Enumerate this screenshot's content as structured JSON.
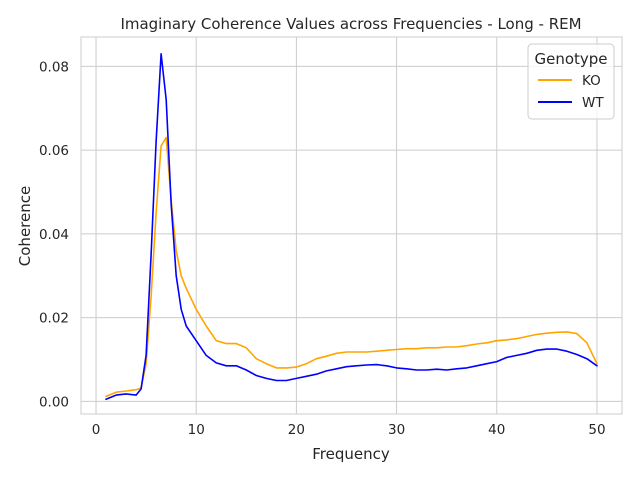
{
  "chart_data": {
    "type": "line",
    "title": "Imaginary Coherence Values across Frequencies - Long - REM",
    "xlabel": "Frequency",
    "ylabel": "Coherence",
    "xlim": [
      -1.5,
      52.5
    ],
    "ylim": [
      -0.003,
      0.087
    ],
    "xticks": [
      0,
      10,
      20,
      30,
      40,
      50
    ],
    "yticks": [
      0.0,
      0.02,
      0.04,
      0.06,
      0.08
    ],
    "ytick_labels": [
      "0.00",
      "0.02",
      "0.04",
      "0.06",
      "0.08"
    ],
    "grid": true,
    "legend": {
      "title": "Genotype",
      "position": "top-right"
    },
    "series": [
      {
        "name": "KO",
        "color": "#FFA500",
        "x": [
          1,
          2,
          3,
          4,
          4.5,
          5,
          5.5,
          6,
          6.5,
          7,
          7.5,
          8,
          8.5,
          9,
          10,
          11,
          12,
          13,
          14,
          15,
          16,
          17,
          18,
          19,
          20,
          21,
          22,
          23,
          24,
          25,
          26,
          27,
          28,
          29,
          30,
          31,
          32,
          33,
          34,
          35,
          36,
          37,
          38,
          39,
          40,
          41,
          42,
          43,
          44,
          45,
          46,
          47,
          48,
          49,
          49.5,
          50
        ],
        "y": [
          0.0012,
          0.0022,
          0.0025,
          0.0028,
          0.0032,
          0.009,
          0.025,
          0.045,
          0.061,
          0.063,
          0.048,
          0.036,
          0.03,
          0.027,
          0.022,
          0.018,
          0.0145,
          0.0138,
          0.0138,
          0.0128,
          0.0102,
          0.009,
          0.008,
          0.008,
          0.0082,
          0.009,
          0.0102,
          0.0108,
          0.0115,
          0.0118,
          0.0118,
          0.0118,
          0.012,
          0.0122,
          0.0124,
          0.0126,
          0.0126,
          0.0128,
          0.0128,
          0.013,
          0.013,
          0.0133,
          0.0137,
          0.014,
          0.0145,
          0.0147,
          0.015,
          0.0155,
          0.016,
          0.0163,
          0.0165,
          0.0166,
          0.0162,
          0.014,
          0.0115,
          0.009
        ]
      },
      {
        "name": "WT",
        "color": "#0000FF",
        "x": [
          1,
          2,
          3,
          4,
          4.5,
          5,
          5.5,
          6,
          6.5,
          7,
          7.5,
          8,
          8.5,
          9,
          10,
          11,
          12,
          13,
          14,
          15,
          16,
          17,
          18,
          19,
          20,
          21,
          22,
          23,
          24,
          25,
          26,
          27,
          28,
          29,
          30,
          31,
          32,
          33,
          34,
          35,
          36,
          37,
          38,
          39,
          40,
          41,
          42,
          43,
          44,
          45,
          46,
          47,
          48,
          49,
          50
        ],
        "y": [
          0.0005,
          0.0015,
          0.0018,
          0.0015,
          0.003,
          0.011,
          0.035,
          0.062,
          0.083,
          0.072,
          0.047,
          0.03,
          0.022,
          0.018,
          0.0145,
          0.011,
          0.0092,
          0.0085,
          0.0085,
          0.0075,
          0.0062,
          0.0055,
          0.005,
          0.005,
          0.0055,
          0.006,
          0.0065,
          0.0073,
          0.0078,
          0.0083,
          0.0085,
          0.0087,
          0.0088,
          0.0085,
          0.008,
          0.0078,
          0.0075,
          0.0075,
          0.0077,
          0.0075,
          0.0078,
          0.008,
          0.0085,
          0.009,
          0.0095,
          0.0105,
          0.011,
          0.0115,
          0.0122,
          0.0125,
          0.0125,
          0.012,
          0.0112,
          0.0102,
          0.0085
        ]
      }
    ]
  }
}
